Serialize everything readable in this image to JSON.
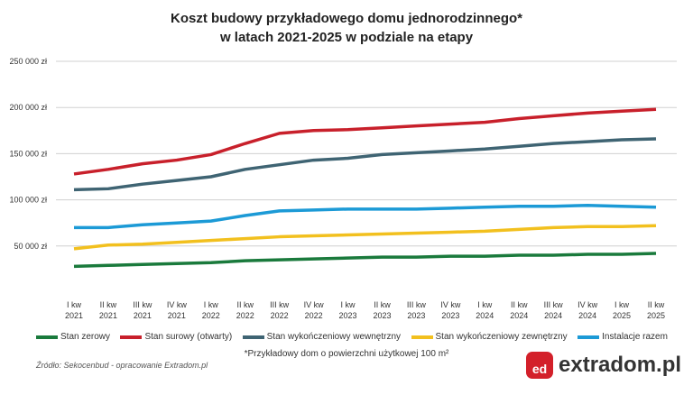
{
  "chart_data": {
    "type": "line",
    "title": "Koszt budowy przykładowego domu jednorodzinnego*",
    "subtitle": "w latach 2021-2025 w podziale na etapy",
    "categories": [
      [
        "I kw",
        "2021"
      ],
      [
        "II kw",
        "2021"
      ],
      [
        "III kw",
        "2021"
      ],
      [
        "IV kw",
        "2021"
      ],
      [
        "I kw",
        "2022"
      ],
      [
        "II kw",
        "2022"
      ],
      [
        "III kw",
        "2022"
      ],
      [
        "IV kw",
        "2022"
      ],
      [
        "I kw",
        "2023"
      ],
      [
        "II kw",
        "2023"
      ],
      [
        "III kw",
        "2023"
      ],
      [
        "IV kw",
        "2023"
      ],
      [
        "I kw",
        "2024"
      ],
      [
        "II kw",
        "2024"
      ],
      [
        "III kw",
        "2024"
      ],
      [
        "IV kw",
        "2024"
      ],
      [
        "I kw",
        "2025"
      ],
      [
        "II kw",
        "2025"
      ]
    ],
    "ylim": [
      0,
      250000
    ],
    "yticks": [
      50000,
      100000,
      150000,
      200000,
      250000
    ],
    "ytick_labels": [
      "50 000 zł",
      "100 000 zł",
      "150 000 zł",
      "200 000 zł",
      "250 000 zł"
    ],
    "grid": true,
    "legend_position": "bottom",
    "series": [
      {
        "name": "Stan zerowy",
        "color": "#1a7a3c",
        "values": [
          28000,
          29000,
          30000,
          31000,
          32000,
          34000,
          35000,
          36000,
          37000,
          38000,
          38000,
          39000,
          39000,
          40000,
          40000,
          41000,
          41000,
          42000
        ]
      },
      {
        "name": "Stan surowy (otwarty)",
        "color": "#c8202b",
        "values": [
          128000,
          133000,
          139000,
          143000,
          149000,
          161000,
          172000,
          175000,
          176000,
          178000,
          180000,
          182000,
          184000,
          188000,
          191000,
          194000,
          196000,
          198000
        ]
      },
      {
        "name": "Stan wykończeniowy wewnętrzny",
        "color": "#3f6473",
        "values": [
          111000,
          112000,
          117000,
          121000,
          125000,
          133000,
          138000,
          143000,
          145000,
          149000,
          151000,
          153000,
          155000,
          158000,
          161000,
          163000,
          165000,
          166000
        ]
      },
      {
        "name": "Stan wykończeniowy zewnętrzny",
        "color": "#f2c01e",
        "values": [
          47000,
          51000,
          52000,
          54000,
          56000,
          58000,
          60000,
          61000,
          62000,
          63000,
          64000,
          65000,
          66000,
          68000,
          70000,
          71000,
          71000,
          72000
        ]
      },
      {
        "name": "Instalacje razem",
        "color": "#1c9ad6",
        "values": [
          70000,
          70000,
          73000,
          75000,
          77000,
          83000,
          88000,
          89000,
          90000,
          90000,
          90000,
          91000,
          92000,
          93000,
          93000,
          94000,
          93000,
          92000
        ]
      }
    ]
  },
  "footnote": "*Przykładowy dom o powierzchni użytkowej 100 m²",
  "source": "Źródło: Sekocenbud - opracowanie Extradom.pl",
  "logo": {
    "mark": "ed",
    "text": "extradom.pl"
  }
}
